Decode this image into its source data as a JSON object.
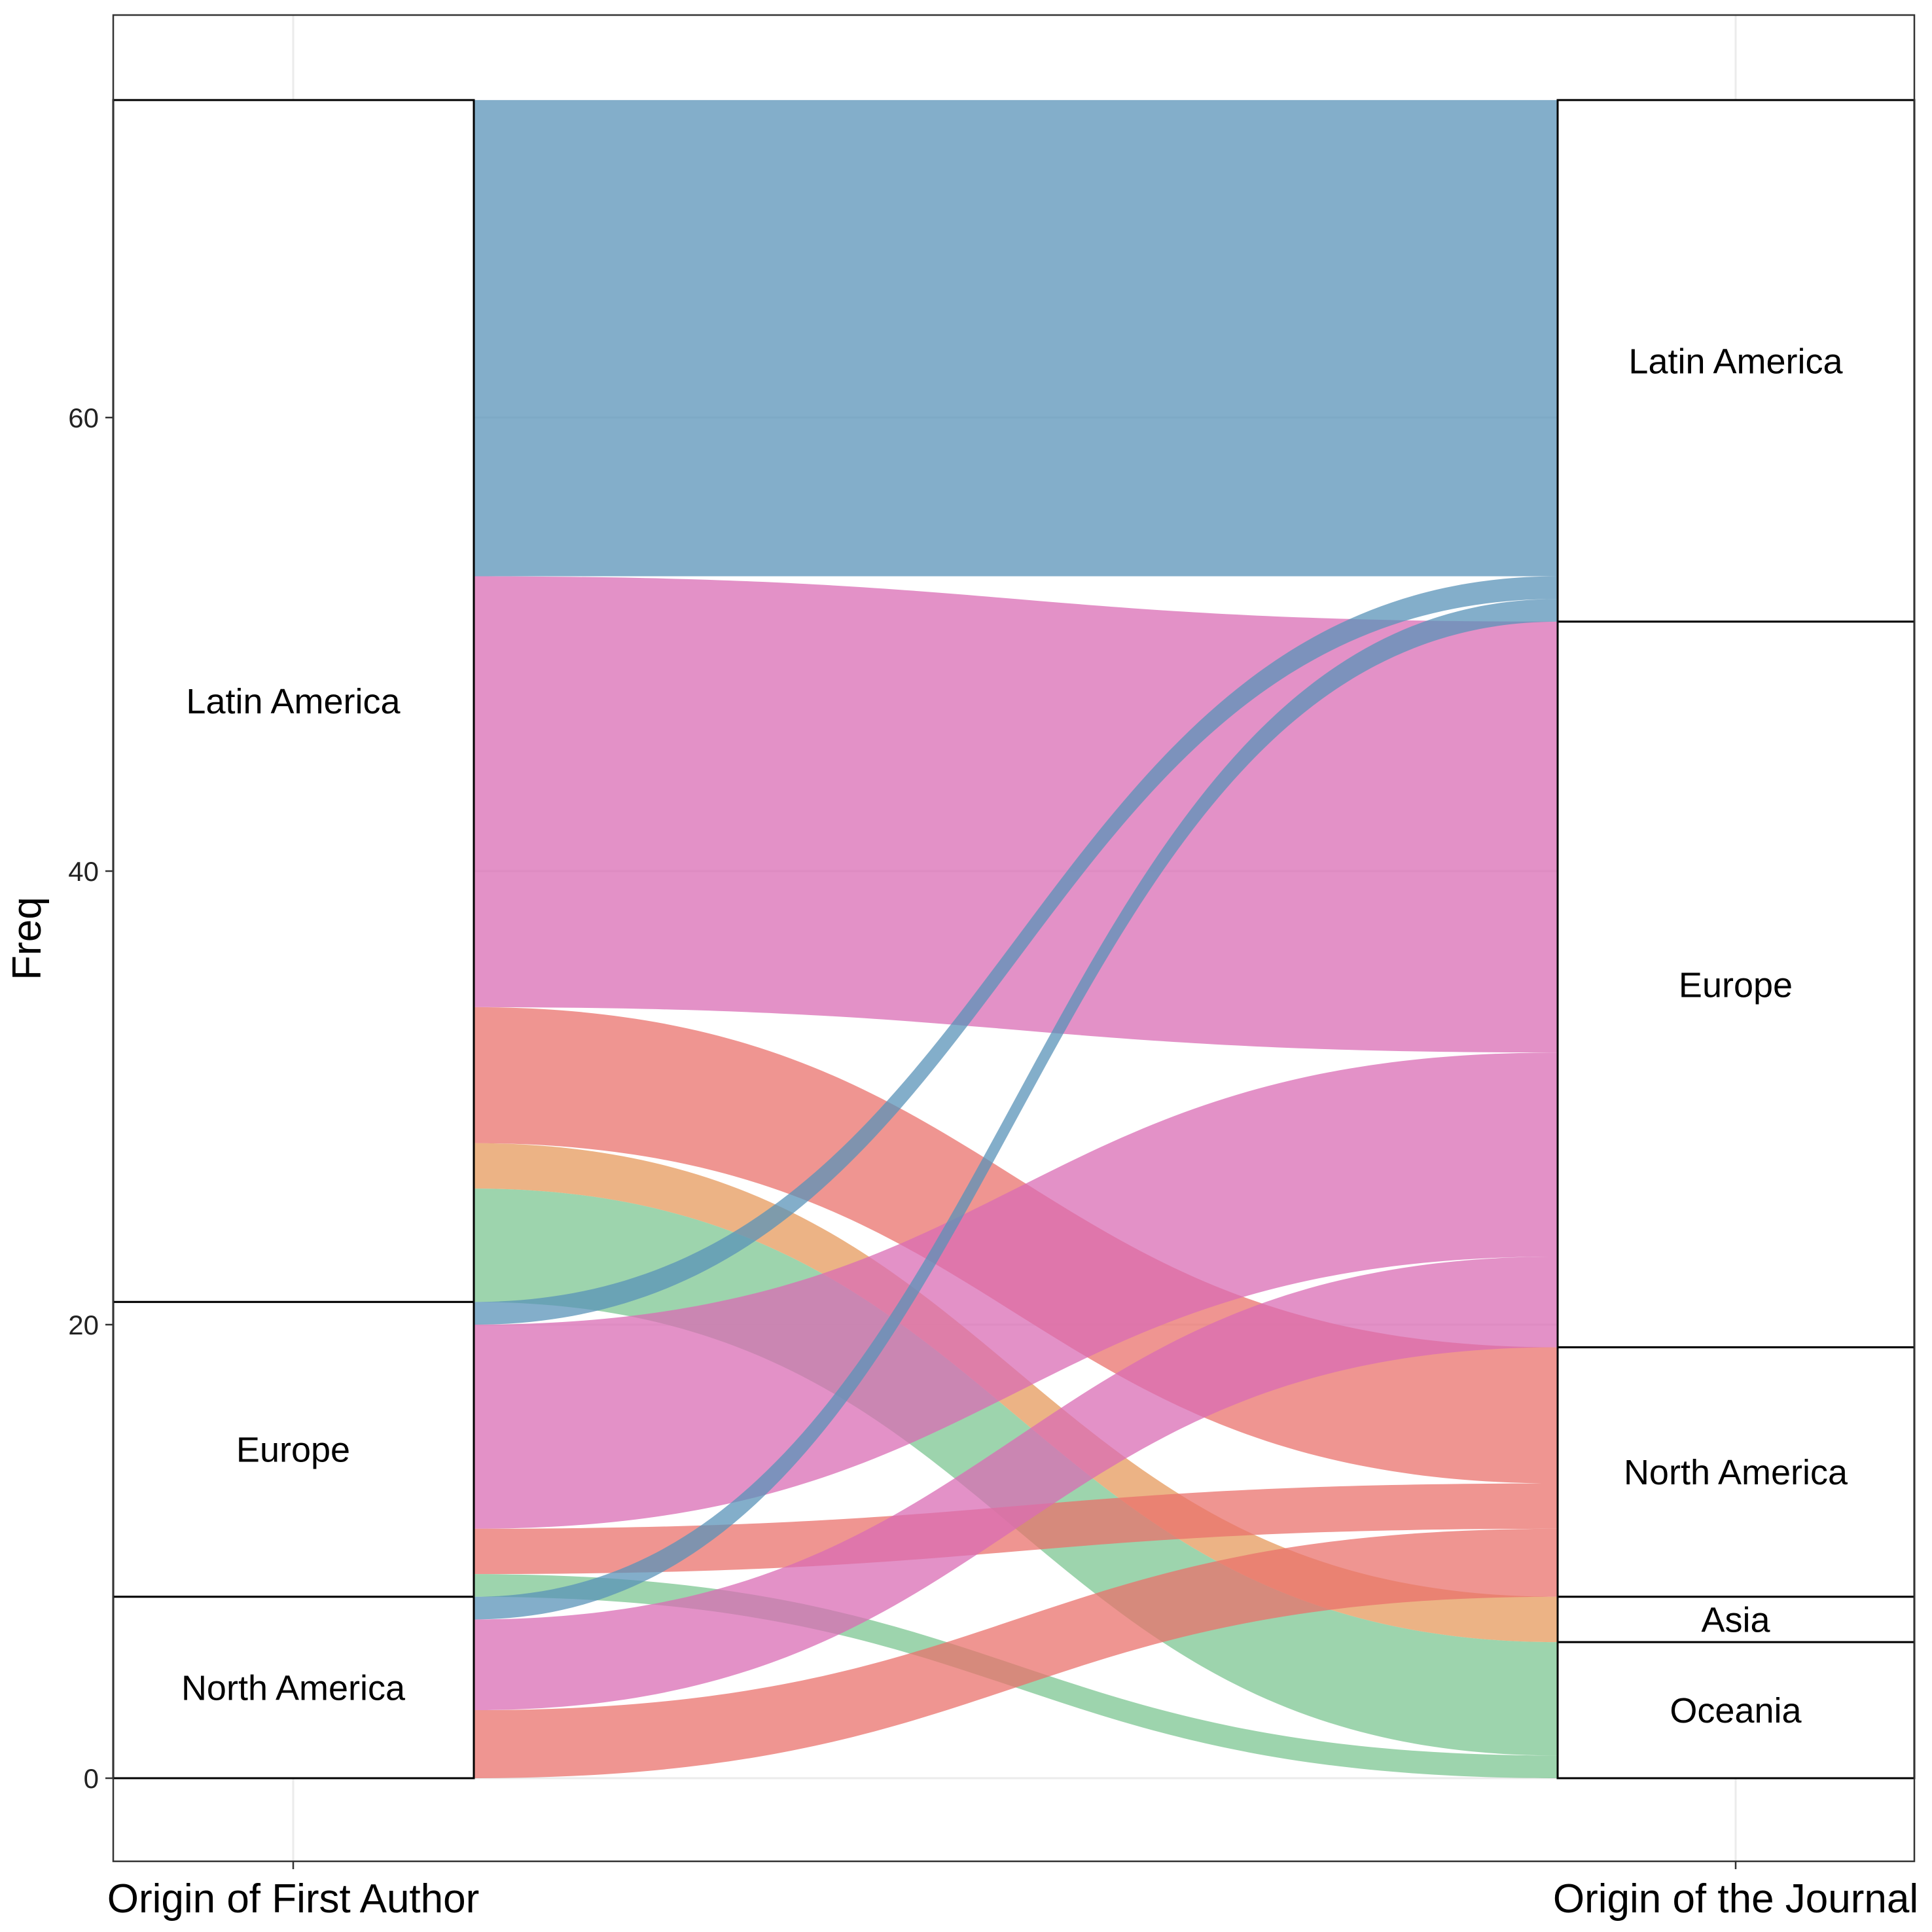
{
  "chart_data": {
    "type": "alluvial",
    "title": "",
    "ylabel": "Freq",
    "ylim": [
      -3.7,
      77.6
    ],
    "yticks": [
      0,
      20,
      40,
      60
    ],
    "ytick_labels": [
      "0",
      "20",
      "40",
      "60"
    ],
    "grid": true,
    "axes": [
      "Origin of First Author",
      "Origin of the Journal"
    ],
    "strata_left": [
      {
        "label": "Latin America",
        "from": 21,
        "to": 74
      },
      {
        "label": "Europe",
        "from": 8,
        "to": 21
      },
      {
        "label": "North America",
        "from": 0,
        "to": 8
      }
    ],
    "strata_right": [
      {
        "label": "Latin America",
        "from": 51,
        "to": 74
      },
      {
        "label": "Europe",
        "from": 19,
        "to": 51
      },
      {
        "label": "North America",
        "from": 8,
        "to": 19
      },
      {
        "label": "Asia",
        "from": 6,
        "to": 8
      },
      {
        "label": "Oceania",
        "from": 0,
        "to": 6
      }
    ],
    "flows": [
      {
        "from": "Latin America",
        "to": "Latin America",
        "value": 21,
        "color": "#5a93b8",
        "left": [
          53,
          74
        ],
        "right": [
          53,
          74
        ]
      },
      {
        "from": "Latin America",
        "to": "Europe",
        "value": 19,
        "color": "#da6cb4",
        "left": [
          34,
          53
        ],
        "right": [
          32,
          51
        ]
      },
      {
        "from": "Latin America",
        "to": "North America",
        "value": 6,
        "color": "#e9716c",
        "left": [
          28,
          34
        ],
        "right": [
          13,
          19
        ]
      },
      {
        "from": "Latin America",
        "to": "Asia",
        "value": 2,
        "color": "#e69a5c",
        "left": [
          26,
          28
        ],
        "right": [
          6,
          8
        ]
      },
      {
        "from": "Latin America",
        "to": "Oceania",
        "value": 5,
        "color": "#7cc692",
        "left": [
          21,
          26
        ],
        "right": [
          1,
          6
        ]
      },
      {
        "from": "Europe",
        "to": "Latin America",
        "value": 1,
        "color": "#5a93b8",
        "left": [
          20,
          21
        ],
        "right": [
          52,
          53
        ]
      },
      {
        "from": "Europe",
        "to": "Europe",
        "value": 9,
        "color": "#da6cb4",
        "left": [
          11,
          20
        ],
        "right": [
          23,
          32
        ]
      },
      {
        "from": "Europe",
        "to": "North America",
        "value": 2,
        "color": "#e9716c",
        "left": [
          9,
          11
        ],
        "right": [
          11,
          13
        ]
      },
      {
        "from": "Europe",
        "to": "Oceania",
        "value": 1,
        "color": "#7cc692",
        "left": [
          8,
          9
        ],
        "right": [
          0,
          1
        ]
      },
      {
        "from": "North America",
        "to": "Latin America",
        "value": 1,
        "color": "#5a93b8",
        "left": [
          7,
          8
        ],
        "right": [
          51,
          52
        ]
      },
      {
        "from": "North America",
        "to": "Europe",
        "value": 4,
        "color": "#da6cb4",
        "left": [
          3,
          7
        ],
        "right": [
          19,
          23
        ]
      },
      {
        "from": "North America",
        "to": "North America",
        "value": 3,
        "color": "#e9716c",
        "left": [
          0,
          3
        ],
        "right": [
          8,
          11
        ]
      }
    ]
  }
}
